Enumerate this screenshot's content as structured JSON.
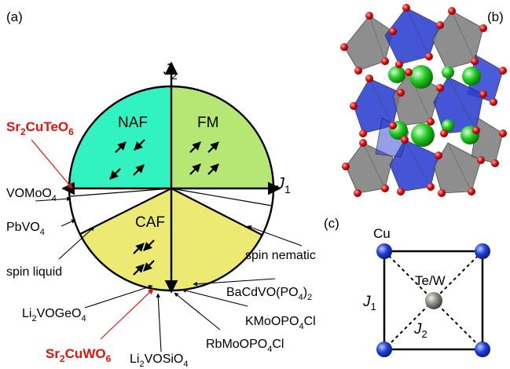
{
  "panels": {
    "a": "(a)",
    "b": "(b)",
    "c": "(c)"
  },
  "phase_diagram": {
    "axes": {
      "j2_main": "J",
      "j2_sub": "2",
      "j1_main": "J",
      "j1_sub": "1"
    },
    "regions": [
      {
        "id": "NAF",
        "label": "NAF",
        "color": "#33f2c1"
      },
      {
        "id": "FM",
        "label": "FM",
        "color": "#b6e673"
      },
      {
        "id": "CAF",
        "label": "CAF",
        "color": "#ecea73"
      },
      {
        "id": "spin-liquid",
        "label": "spin liquid",
        "color": "#ffffff"
      },
      {
        "id": "spin-nematic",
        "label": "spin nematic",
        "color": "#ffffff"
      }
    ],
    "compounds": {
      "sr2cuteo6": {
        "a": "Sr",
        "b": "2",
        "c": "CuTeO",
        "d": "6",
        "color": "#e3120b"
      },
      "vomoo4": {
        "a": "VOMoO",
        "b": "4"
      },
      "pbvo4": {
        "a": "PbVO",
        "b": "4"
      },
      "li2vogeo4": {
        "a": "Li",
        "b": "2",
        "c": "VOGeO",
        "d": "4"
      },
      "sr2cuwo6": {
        "a": "Sr",
        "b": "2",
        "c": "CuWO",
        "d": "6",
        "color": "#e3120b"
      },
      "li2vosio4": {
        "a": "Li",
        "b": "2",
        "c": "VOSiO",
        "d": "4"
      },
      "rbmoopo4cl": {
        "a": "RbMoOPO",
        "b": "4",
        "c": "Cl"
      },
      "kmoopo4cl": {
        "a": "KMoOPO",
        "b": "4",
        "c": "Cl"
      },
      "bacdvopo42": {
        "a": "BaCdVO(PO",
        "b": "4",
        "c": ")",
        "d": "2"
      }
    }
  },
  "crystal": {
    "colors": {
      "octahedron_gray": "#8a8a8a",
      "octahedron_blue": "#2a3fd0",
      "oxygen": "#e01010",
      "sr": "#22cc22"
    }
  },
  "square_lattice": {
    "cu_label": "Cu",
    "center_label": "Te/W",
    "j1_main": "J",
    "j1_sub": "1",
    "j2_main": "J",
    "j2_sub": "2",
    "colors": {
      "cu": "#1f3fd6",
      "center": "#8c8c80"
    }
  }
}
